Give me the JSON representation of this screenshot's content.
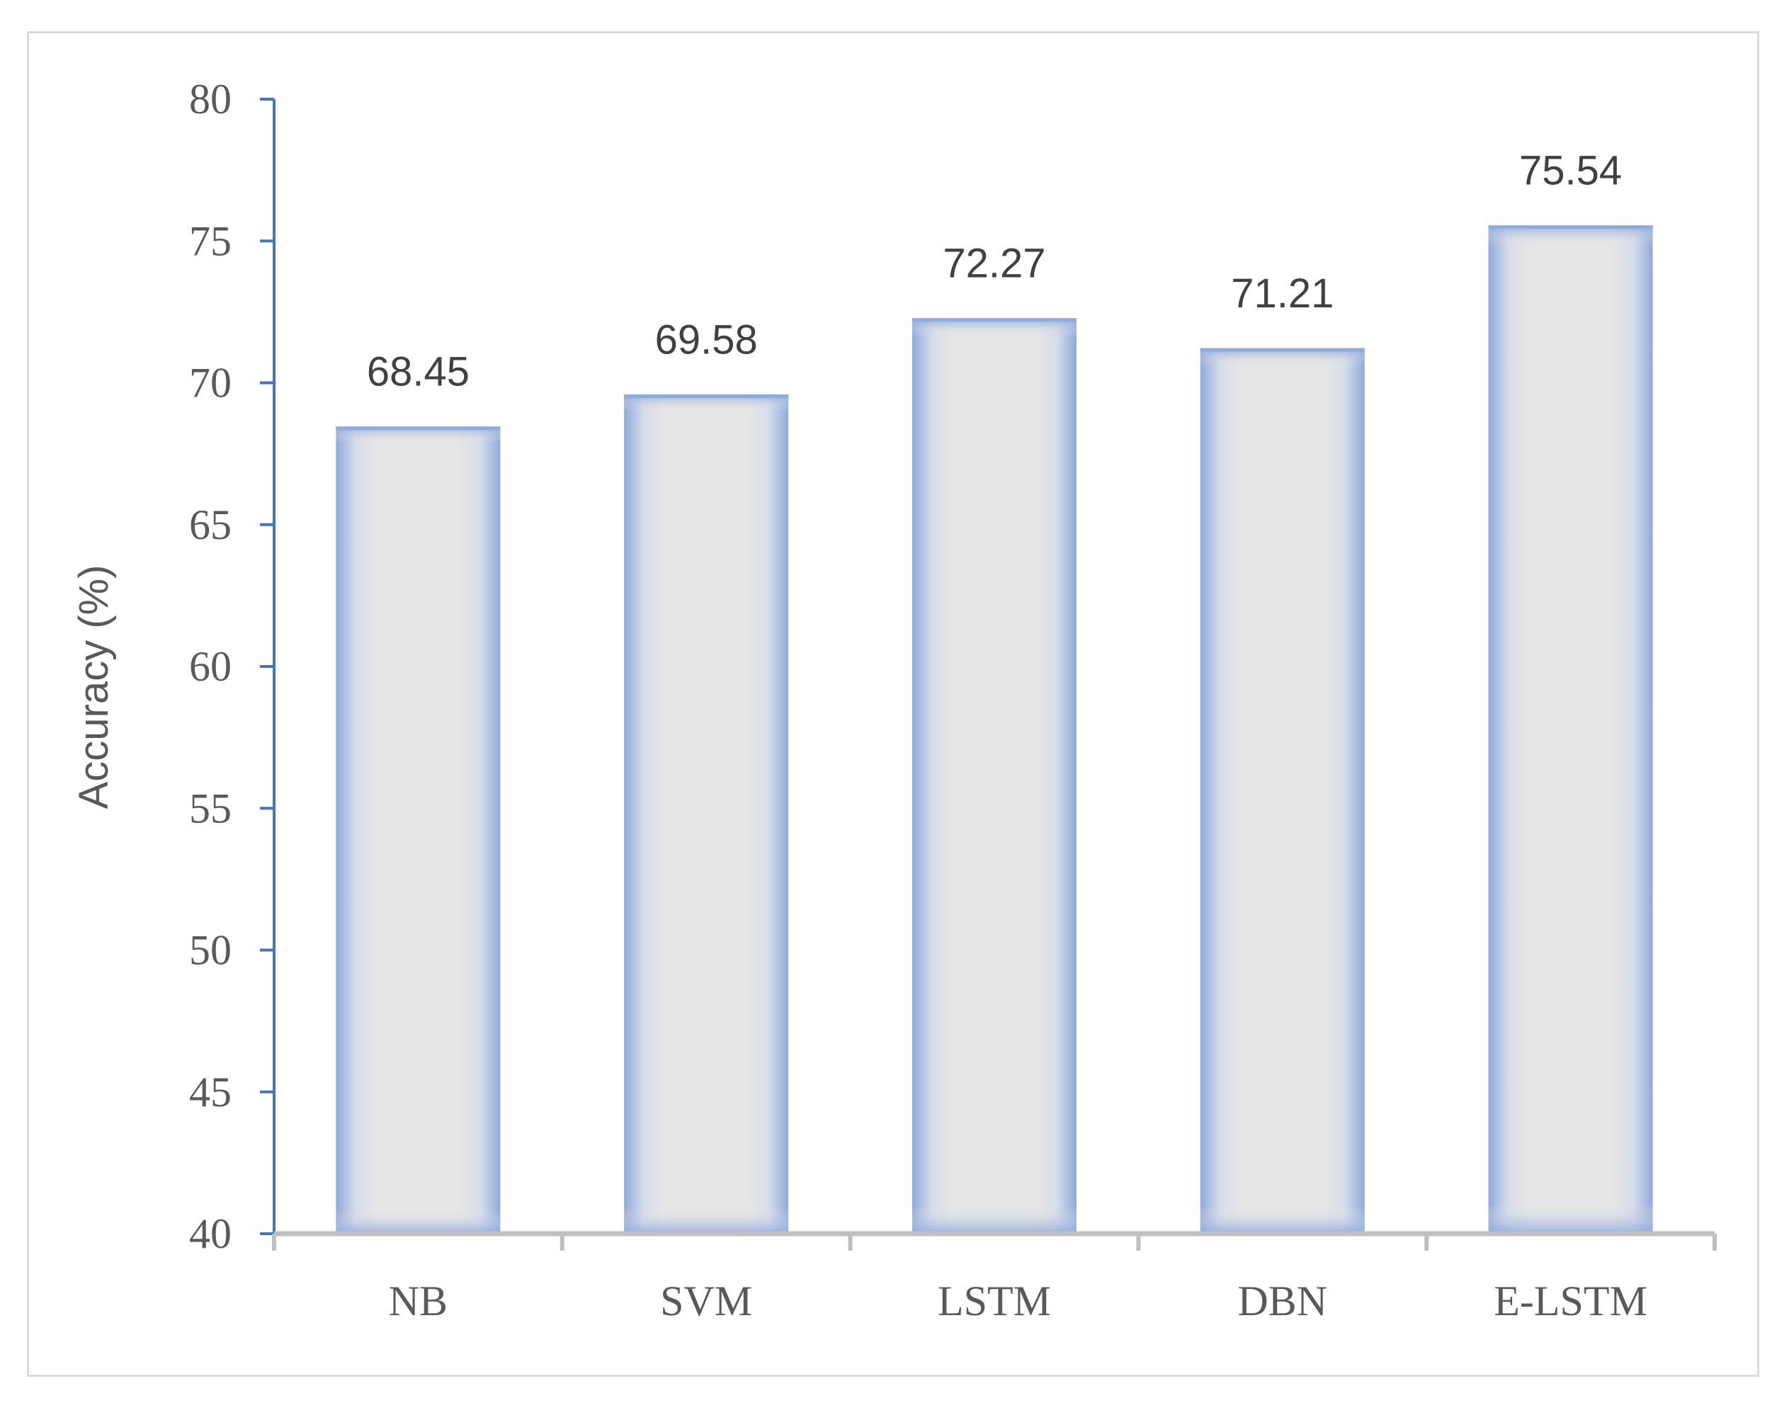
{
  "chart_data": {
    "type": "bar",
    "title": "",
    "xlabel": "",
    "ylabel": "Accuracy (%)",
    "categories": [
      "NB",
      "SVM",
      "LSTM",
      "DBN",
      "E-LSTM"
    ],
    "values": [
      68.45,
      69.58,
      72.27,
      71.21,
      75.54
    ],
    "value_labels": [
      "68.45",
      "69.58",
      "72.27",
      "71.21",
      "75.54"
    ],
    "ylim": [
      40,
      80
    ],
    "yticks": [
      40,
      45,
      50,
      55,
      60,
      65,
      70,
      75,
      80
    ],
    "grid": false,
    "legend": "none",
    "colors": {
      "bar_fill": "#e6e6e6",
      "bar_edge": "#8faadc",
      "y_axis": "#4472c4",
      "x_axis": "#bfbfbf"
    }
  }
}
